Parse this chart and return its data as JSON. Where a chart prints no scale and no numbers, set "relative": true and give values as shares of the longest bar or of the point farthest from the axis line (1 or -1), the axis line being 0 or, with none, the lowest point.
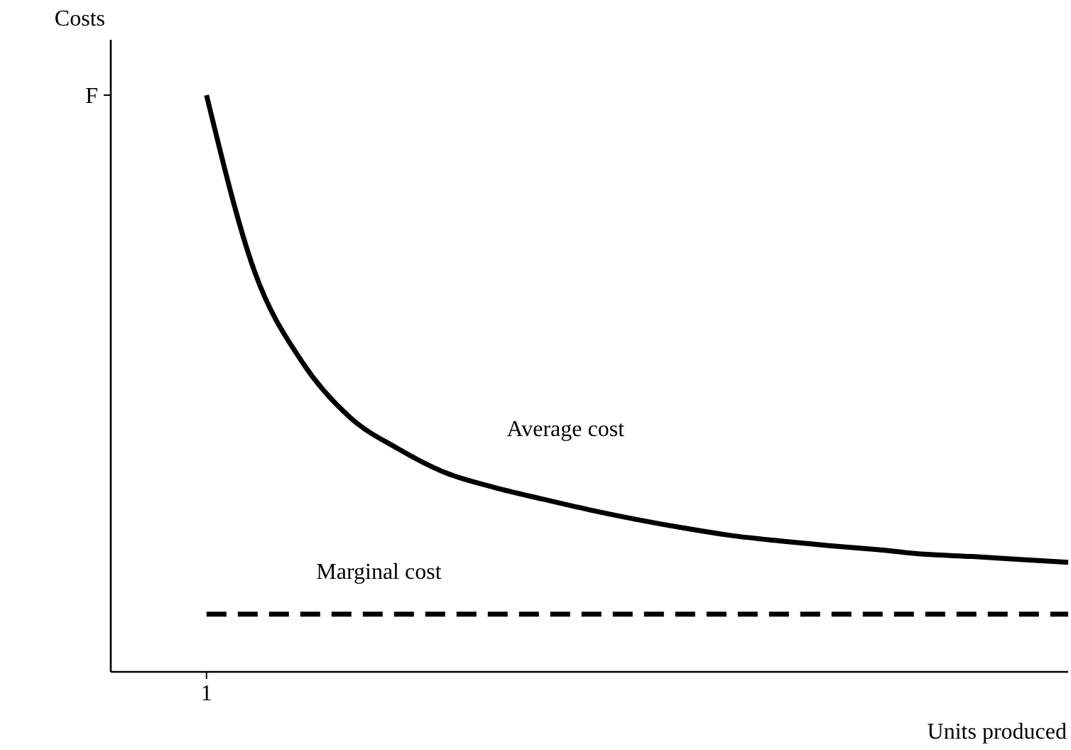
{
  "chart_data": {
    "type": "line",
    "relative": true,
    "ylabel": "Costs",
    "xlabel": "Units produced",
    "categories": [
      null,
      null,
      null,
      null,
      null,
      null,
      null,
      null,
      null,
      null,
      null,
      null,
      null,
      null,
      null,
      null,
      null,
      null,
      null
    ],
    "annotations": [
      "F",
      "1"
    ],
    "marker": "none",
    "series": [
      {
        "name": "Average cost",
        "color": "#000000",
        "line_style": "solid",
        "values": [
          1.0,
          0.695,
          0.537,
          0.441,
          0.387,
          0.345,
          0.32,
          0.3,
          0.281,
          0.264,
          0.249,
          0.236,
          0.227,
          0.219,
          0.212,
          0.204,
          0.2,
          0.195,
          0.19
        ]
      },
      {
        "name": "Marginal cost",
        "color": "#000000",
        "line_style": "dashed",
        "values": [
          0.1,
          0.1,
          0.1,
          0.1,
          0.1,
          0.1,
          0.1,
          0.1,
          0.1,
          0.1,
          0.1,
          0.1,
          0.1,
          0.1,
          0.1,
          0.1,
          0.1,
          0.1,
          0.1
        ]
      }
    ]
  }
}
